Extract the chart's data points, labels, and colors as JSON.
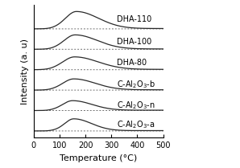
{
  "title": "",
  "xlabel": "Temperature (°C)",
  "ylabel": "Intensity (a. u)",
  "xlim": [
    0,
    500
  ],
  "labels": [
    "DHA-110",
    "DHA-100",
    "DHA-80",
    "C-Al₂O₃-b",
    "C-Al₂O₃-n",
    "C-Al₂O₃-a"
  ],
  "baselines": [
    5.5,
    4.6,
    3.7,
    2.8,
    1.9,
    1.0
  ],
  "peak_centers": [
    165,
    160,
    158,
    155,
    150,
    155
  ],
  "peak_heights": [
    0.75,
    0.62,
    0.55,
    0.48,
    0.42,
    0.52
  ],
  "peak_widths_left": [
    42,
    42,
    45,
    42,
    38,
    35
  ],
  "peak_widths_right": [
    85,
    85,
    90,
    82,
    75,
    68
  ],
  "onset_temps": [
    75,
    72,
    70,
    68,
    65,
    68
  ],
  "line_color": "#2a2a2a",
  "dot_color": "#555555",
  "background_color": "#ffffff",
  "tick_fontsize": 7,
  "label_fontsize": 8,
  "legend_fontsize": 7,
  "axis_label_fontsize": 8
}
